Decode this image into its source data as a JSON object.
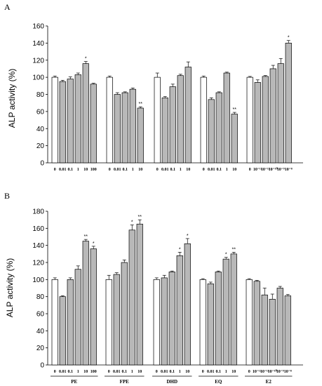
{
  "colors": {
    "control": "#ffffff",
    "treated": "#b8b8b8",
    "stroke": "#000000"
  },
  "chart_data": [
    {
      "type": "bar",
      "panel": "A",
      "ylabel": "ALP activity (%)",
      "ylim": [
        0,
        160
      ],
      "yticks": [
        0,
        20,
        40,
        60,
        80,
        100,
        120,
        140,
        160
      ],
      "groups": [
        {
          "name": "",
          "labels": [
            "0",
            "0.01",
            "0.1",
            "1",
            "10",
            "100"
          ],
          "values": [
            100,
            95,
            98,
            103,
            116,
            92
          ],
          "errors": [
            1.5,
            1.5,
            2.5,
            2,
            2.5,
            1
          ],
          "sig": [
            "",
            "",
            "",
            "",
            "*",
            ""
          ]
        },
        {
          "name": "",
          "labels": [
            "0",
            "0.01",
            "0.1",
            "1",
            "10"
          ],
          "values": [
            100,
            80,
            82,
            86,
            64
          ],
          "errors": [
            1.5,
            2,
            1,
            1.5,
            1.5
          ],
          "sig": [
            "",
            "",
            "",
            "",
            "**"
          ]
        },
        {
          "name": "",
          "labels": [
            "0",
            "0.01",
            "0.1",
            "1",
            "10"
          ],
          "values": [
            100,
            76,
            89,
            102,
            112
          ],
          "errors": [
            5,
            1.5,
            3,
            1.5,
            6
          ],
          "sig": [
            "",
            "",
            "",
            "",
            ""
          ]
        },
        {
          "name": "",
          "labels": [
            "0",
            "0.01",
            "0.1",
            "1",
            "10"
          ],
          "values": [
            100,
            74,
            82,
            105,
            57
          ],
          "errors": [
            1.5,
            2,
            1,
            1,
            2
          ],
          "sig": [
            "",
            "",
            "",
            "",
            "**"
          ]
        },
        {
          "name": "",
          "labels": [
            "0",
            "10⁻¹²",
            "10⁻¹¹",
            "10⁻¹⁰",
            "10⁻⁹",
            "10⁻⁸"
          ],
          "values": [
            100,
            94,
            101,
            110,
            116,
            140
          ],
          "errors": [
            1,
            3,
            1,
            4,
            6,
            3
          ],
          "sig": [
            "",
            "",
            "",
            "",
            "",
            "*"
          ]
        }
      ]
    },
    {
      "type": "bar",
      "panel": "B",
      "ylabel": "ALP activity (%)",
      "ylim": [
        0,
        180
      ],
      "yticks": [
        0,
        20,
        40,
        60,
        80,
        100,
        120,
        140,
        160,
        180
      ],
      "groups": [
        {
          "name": "PE",
          "labels": [
            "0",
            "0.01",
            "0.1",
            "1",
            "10",
            "100"
          ],
          "values": [
            100,
            80,
            100,
            112,
            145,
            136
          ],
          "errors": [
            2,
            1,
            2,
            4,
            2,
            3
          ],
          "sig": [
            "",
            "",
            "",
            "",
            "**",
            "*"
          ]
        },
        {
          "name": "FPE",
          "labels": [
            "0",
            "0.01",
            "0.1",
            "1",
            "10"
          ],
          "values": [
            100,
            106,
            120,
            158,
            165
          ],
          "errors": [
            5,
            2,
            3,
            6,
            5
          ],
          "sig": [
            "",
            "",
            "",
            "*",
            "**"
          ]
        },
        {
          "name": "DHD",
          "labels": [
            "0",
            "0.01",
            "0.1",
            "1",
            "10"
          ],
          "values": [
            100,
            102,
            109,
            128,
            142
          ],
          "errors": [
            2,
            3,
            1,
            4,
            6
          ],
          "sig": [
            "",
            "",
            "",
            "*",
            "*"
          ]
        },
        {
          "name": "EQ",
          "labels": [
            "0",
            "0.01",
            "0.1",
            "1",
            "10"
          ],
          "values": [
            100,
            95,
            109,
            124,
            130
          ],
          "errors": [
            1,
            2,
            1,
            2,
            2
          ],
          "sig": [
            "",
            "",
            "",
            "*",
            "**"
          ]
        },
        {
          "name": "E2",
          "labels": [
            "0",
            "10⁻¹²",
            "10⁻¹¹",
            "10⁻¹⁰",
            "10⁻⁹",
            "10⁻⁸"
          ],
          "values": [
            100,
            98,
            82,
            77,
            90,
            81
          ],
          "errors": [
            1,
            1,
            8,
            6,
            2,
            1.5
          ],
          "sig": [
            "",
            "",
            "",
            "",
            "",
            ""
          ]
        }
      ]
    }
  ]
}
